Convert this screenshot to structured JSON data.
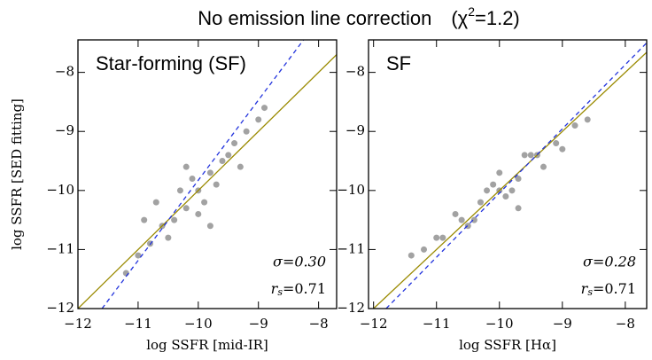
{
  "title": {
    "main": "No emission line correction",
    "pre": "(χ",
    "sup": "2",
    "post": "=1.2)"
  },
  "chart_data": [
    {
      "type": "scatter",
      "label": "Star-forming (SF)",
      "xlabel": "log SSFR [mid-IR]",
      "ylabel": "log SSFR [SED fitting]",
      "sigma": "σ=0.30",
      "rs": {
        "base": "r",
        "sub": "s",
        "rest": "=0.71"
      },
      "xlim": [
        -12,
        -7.7
      ],
      "ylim": [
        -12,
        -7.45
      ],
      "xticks": [
        {
          "value": -12,
          "label": "−12"
        },
        {
          "value": -11,
          "label": "−11"
        },
        {
          "value": -10,
          "label": "−10"
        },
        {
          "value": -9,
          "label": "−9"
        },
        {
          "value": -8,
          "label": "−8"
        }
      ],
      "yticks": [
        {
          "value": -12,
          "label": "−12"
        },
        {
          "value": -11,
          "label": "−11"
        },
        {
          "value": -10,
          "label": "−10"
        },
        {
          "value": -9,
          "label": "−9"
        },
        {
          "value": -8,
          "label": "−8"
        }
      ],
      "color": "#555555",
      "x": [
        -10.0,
        -10.2,
        -9.8,
        -10.4,
        -9.6,
        -10.6,
        -9.4,
        -10.1,
        -9.9,
        -10.8,
        -9.2,
        -10.3,
        -9.7,
        -11.0,
        -9.0,
        -10.5,
        -9.5,
        -10.0,
        -10.7,
        -9.3,
        -11.2,
        -8.9,
        -10.2,
        -9.8,
        -10.9
      ],
      "y": [
        -10.0,
        -10.3,
        -9.7,
        -10.5,
        -9.5,
        -10.6,
        -9.2,
        -9.8,
        -10.2,
        -10.9,
        -9.0,
        -10.0,
        -9.9,
        -11.1,
        -8.8,
        -10.8,
        -9.4,
        -10.4,
        -10.2,
        -9.6,
        -11.4,
        -8.6,
        -9.6,
        -10.6,
        -10.5
      ],
      "lines": [
        {
          "color": "#9a8a00",
          "dash": false,
          "x": [
            -12,
            -7.7
          ],
          "y": [
            -12,
            -7.7
          ]
        },
        {
          "color": "#2233dd",
          "dash": true,
          "x": [
            -11.6,
            -8.25
          ],
          "y": [
            -12,
            -7.45
          ]
        }
      ]
    },
    {
      "type": "scatter",
      "label": "SF",
      "xlabel": "log SSFR [Hα]",
      "sigma": "σ=0.28",
      "rs": {
        "base": "r",
        "sub": "s",
        "rest": "=0.71"
      },
      "xlim": [
        -12.08,
        -7.66
      ],
      "ylim": [
        -12,
        -7.45
      ],
      "xticks": [
        {
          "value": -12,
          "label": "−12"
        },
        {
          "value": -11,
          "label": "−11"
        },
        {
          "value": -10,
          "label": "−10"
        },
        {
          "value": -9,
          "label": "−9"
        },
        {
          "value": -8,
          "label": "−8"
        }
      ],
      "yticks": [
        {
          "value": -12,
          "label": "−12"
        },
        {
          "value": -11,
          "label": "−11"
        },
        {
          "value": -10,
          "label": "−10"
        },
        {
          "value": -9,
          "label": "−9"
        },
        {
          "value": -8,
          "label": "−8"
        }
      ],
      "color": "#555555",
      "x": [
        -10.0,
        -10.3,
        -9.7,
        -10.6,
        -9.4,
        -10.9,
        -9.1,
        -10.1,
        -9.9,
        -11.2,
        -8.8,
        -10.4,
        -9.6,
        -10.7,
        -9.3,
        -10.2,
        -9.8,
        -11.0,
        -9.0,
        -10.5,
        -9.5,
        -11.4,
        -8.6,
        -10.0,
        -9.7
      ],
      "y": [
        -10.0,
        -10.2,
        -9.8,
        -10.5,
        -9.4,
        -10.8,
        -9.2,
        -9.9,
        -10.1,
        -11.0,
        -8.9,
        -10.5,
        -9.4,
        -10.4,
        -9.6,
        -10.0,
        -10.0,
        -10.8,
        -9.3,
        -10.6,
        -9.4,
        -11.1,
        -8.8,
        -9.7,
        -10.3
      ],
      "lines": [
        {
          "color": "#9a8a00",
          "dash": false,
          "x": [
            -12,
            -7.66
          ],
          "y": [
            -12,
            -7.66
          ]
        },
        {
          "color": "#2233dd",
          "dash": true,
          "x": [
            -11.8,
            -7.66
          ],
          "y": [
            -12,
            -7.5
          ]
        }
      ]
    }
  ]
}
